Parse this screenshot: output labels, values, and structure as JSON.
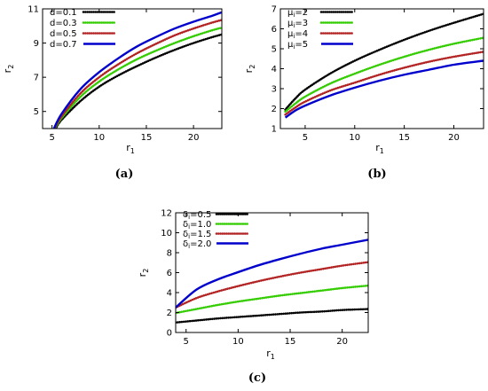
{
  "chart_data": [
    {
      "type": "line",
      "caption": "(a)",
      "xlabel": "r",
      "xlabel_sub": "1",
      "ylabel": "r",
      "ylabel_sub": "2",
      "xlim": [
        4,
        23
      ],
      "ylim": [
        4,
        11
      ],
      "xticks": [
        5,
        10,
        15,
        20
      ],
      "yticks": [
        5,
        7,
        9,
        11
      ],
      "legend": "top-left",
      "series": [
        {
          "name": "d=0.1",
          "color": "#000000",
          "style": "dotted",
          "x": [
            5.4,
            6,
            8,
            10,
            12,
            14,
            16,
            18,
            20,
            22,
            23
          ],
          "values": [
            4.0,
            4.5,
            5.6,
            6.45,
            7.1,
            7.65,
            8.15,
            8.6,
            9.0,
            9.35,
            9.5
          ]
        },
        {
          "name": "d=0.3",
          "color": "#33cc00",
          "style": "dotted",
          "x": [
            5.3,
            6,
            8,
            10,
            12,
            14,
            16,
            18,
            20,
            22,
            23
          ],
          "values": [
            4.0,
            4.6,
            5.85,
            6.75,
            7.45,
            8.05,
            8.55,
            9.0,
            9.4,
            9.75,
            9.9
          ]
        },
        {
          "name": "d=0.5",
          "color": "#b22222",
          "style": "dotted",
          "x": [
            5.25,
            6,
            8,
            10,
            12,
            14,
            16,
            18,
            20,
            22,
            23
          ],
          "values": [
            4.0,
            4.7,
            6.05,
            7.0,
            7.75,
            8.4,
            8.95,
            9.45,
            9.85,
            10.2,
            10.35
          ]
        },
        {
          "name": "d=0.7",
          "color": "#0000cc",
          "style": "solid",
          "x": [
            5.2,
            6,
            8,
            10,
            12,
            14,
            16,
            18,
            20,
            22,
            23
          ],
          "values": [
            4.0,
            4.85,
            6.3,
            7.3,
            8.1,
            8.8,
            9.35,
            9.85,
            10.25,
            10.6,
            10.8
          ]
        }
      ]
    },
    {
      "type": "line",
      "caption": "(b)",
      "xlabel": "r",
      "xlabel_sub": "1",
      "ylabel": "r",
      "ylabel_sub": "2",
      "xlim": [
        2.5,
        23
      ],
      "ylim": [
        1,
        7
      ],
      "xticks": [
        5,
        10,
        15,
        20
      ],
      "yticks": [
        1,
        2,
        3,
        4,
        5,
        6,
        7
      ],
      "legend": "top-left",
      "series": [
        {
          "name": "μ",
          "name_sub": "i",
          "name_suffix": "=2",
          "color": "#000000",
          "style": "dotted",
          "x": [
            3,
            4,
            5,
            7.5,
            10,
            12.5,
            15,
            17.5,
            20,
            23
          ],
          "values": [
            1.95,
            2.5,
            2.95,
            3.75,
            4.4,
            4.95,
            5.45,
            5.9,
            6.3,
            6.75
          ]
        },
        {
          "name": "μ",
          "name_sub": "i",
          "name_suffix": "=3",
          "color": "#33cc00",
          "style": "dotted",
          "x": [
            3,
            4,
            5,
            7.5,
            10,
            12.5,
            15,
            17.5,
            20,
            23
          ],
          "values": [
            1.85,
            2.25,
            2.6,
            3.25,
            3.75,
            4.2,
            4.6,
            4.95,
            5.25,
            5.55
          ]
        },
        {
          "name": "μ",
          "name_sub": "i",
          "name_suffix": "=4",
          "color": "#b22222",
          "style": "dotted",
          "x": [
            3,
            4,
            5,
            7.5,
            10,
            12.5,
            15,
            17.5,
            20,
            23
          ],
          "values": [
            1.7,
            2.05,
            2.35,
            2.9,
            3.3,
            3.7,
            4.05,
            4.35,
            4.6,
            4.85
          ]
        },
        {
          "name": "μ",
          "name_sub": "i",
          "name_suffix": "=5",
          "color": "#0000cc",
          "style": "solid",
          "x": [
            3,
            4,
            5,
            7.5,
            10,
            12.5,
            15,
            17.5,
            20,
            23
          ],
          "values": [
            1.55,
            1.9,
            2.15,
            2.65,
            3.05,
            3.4,
            3.7,
            3.95,
            4.2,
            4.4
          ]
        }
      ]
    },
    {
      "type": "line",
      "caption": "(c)",
      "xlabel": "r",
      "xlabel_sub": "1",
      "ylabel": "r",
      "ylabel_sub": "2",
      "xlim": [
        4,
        22.5
      ],
      "ylim": [
        0,
        12
      ],
      "xticks": [
        5,
        10,
        15,
        20
      ],
      "yticks": [
        0,
        2,
        4,
        6,
        8,
        10,
        12
      ],
      "legend": "top-left",
      "series": [
        {
          "name": "δ",
          "name_sub": "i",
          "name_suffix": "=0.5",
          "color": "#000000",
          "style": "dotted",
          "x": [
            4,
            6,
            8,
            10,
            12,
            14,
            16,
            18,
            20,
            22.5
          ],
          "values": [
            1.0,
            1.2,
            1.4,
            1.55,
            1.7,
            1.85,
            2.0,
            2.1,
            2.25,
            2.35
          ]
        },
        {
          "name": "δ",
          "name_sub": "i",
          "name_suffix": "=1.0",
          "color": "#33cc00",
          "style": "dotted",
          "x": [
            4,
            6,
            8,
            10,
            12,
            14,
            16,
            18,
            20,
            22.5
          ],
          "values": [
            1.95,
            2.35,
            2.75,
            3.1,
            3.4,
            3.7,
            3.95,
            4.2,
            4.45,
            4.7
          ]
        },
        {
          "name": "δ",
          "name_sub": "i",
          "name_suffix": "=1.5",
          "color": "#b22222",
          "style": "dotted",
          "x": [
            4,
            6,
            8,
            10,
            12,
            14,
            16,
            18,
            20,
            22.5
          ],
          "values": [
            2.5,
            3.45,
            4.1,
            4.65,
            5.15,
            5.6,
            6.0,
            6.35,
            6.7,
            7.05
          ]
        },
        {
          "name": "δ",
          "name_sub": "i",
          "name_suffix": "=2.0",
          "color": "#0000cc",
          "style": "solid",
          "x": [
            4,
            6,
            8,
            10,
            12,
            14,
            16,
            18,
            20,
            22.5
          ],
          "values": [
            2.5,
            4.3,
            5.3,
            6.05,
            6.75,
            7.35,
            7.9,
            8.4,
            8.8,
            9.3
          ]
        }
      ]
    }
  ]
}
